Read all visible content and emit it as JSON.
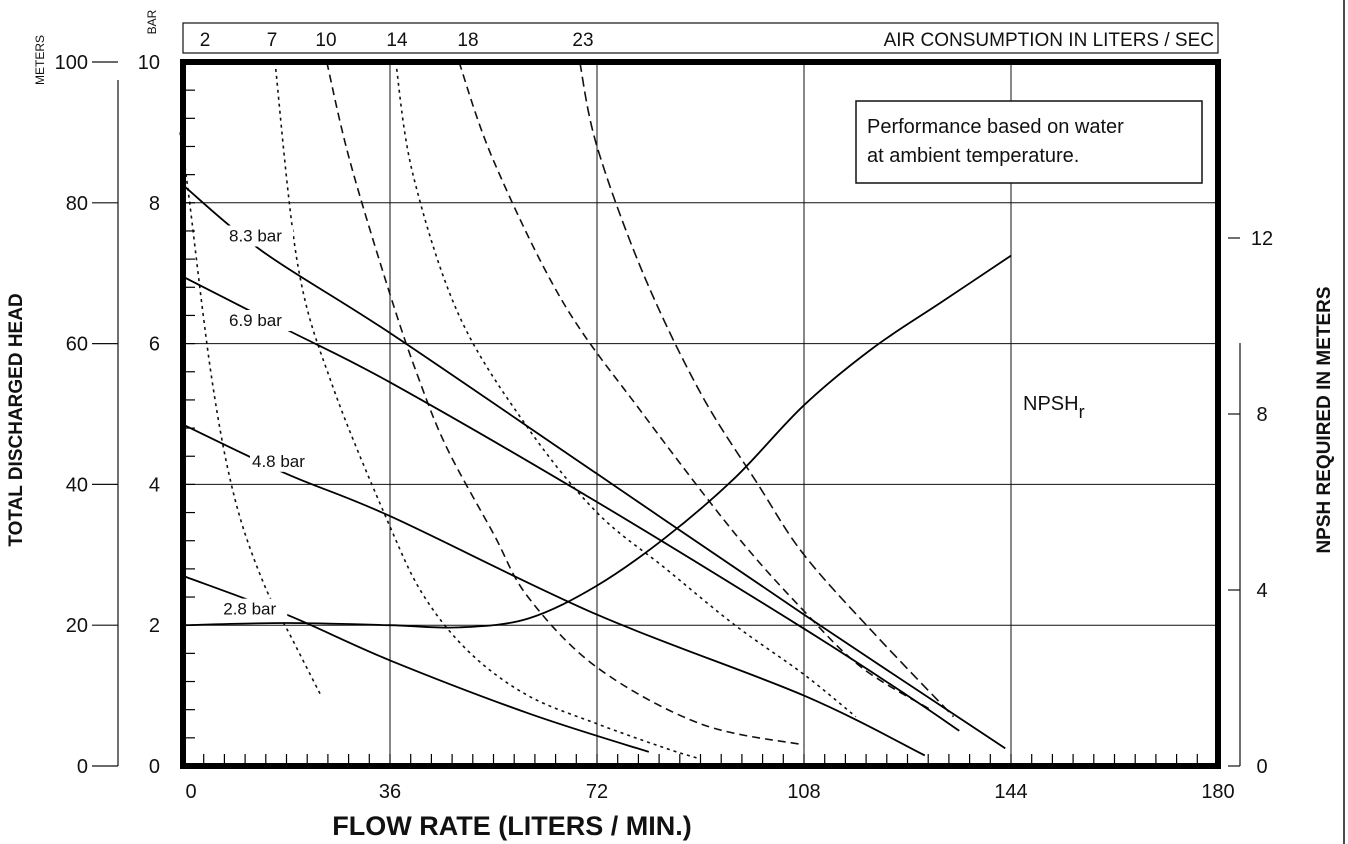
{
  "chart_data": {
    "type": "line",
    "x_axis": {
      "label": "FLOW RATE (LITERS / MIN.)",
      "range": [
        0,
        180
      ],
      "ticks": [
        "0",
        "36",
        "72",
        "108",
        "144",
        "180"
      ]
    },
    "y_axis_left_meters": {
      "unit_label": "METERS",
      "title": "TOTAL DISCHARGED HEAD",
      "range": [
        0,
        100
      ],
      "ticks": [
        "0",
        "20",
        "40",
        "60",
        "80",
        "100"
      ]
    },
    "y_axis_left_bar": {
      "unit_label": "BAR",
      "range": [
        0,
        10
      ],
      "ticks": [
        "0",
        "2",
        "4",
        "6",
        "8",
        "10"
      ]
    },
    "y_axis_right": {
      "title": "NPSH REQUIRED IN METERS",
      "range": [
        0,
        16
      ],
      "ticks": [
        "0",
        "4",
        "8",
        "12"
      ]
    },
    "air_consumption_header": {
      "title": "AIR CONSUMPTION IN LITERS / SEC",
      "labels": [
        "2",
        "7",
        "10",
        "14",
        "18",
        "23"
      ]
    },
    "note": {
      "line1": "Performance based on water",
      "line2": "at ambient temperature."
    },
    "npsh_label": {
      "main": "NPSH",
      "subscript": "r"
    },
    "pressure_curves": [
      {
        "name": "8.3 bar",
        "points": [
          [
            0,
            82.5
          ],
          [
            14,
            73
          ],
          [
            36,
            61.5
          ],
          [
            72,
            41.5
          ],
          [
            108,
            21.5
          ],
          [
            143,
            2.5
          ]
        ]
      },
      {
        "name": "6.9 bar",
        "points": [
          [
            0,
            69.5
          ],
          [
            18,
            62
          ],
          [
            36,
            54.5
          ],
          [
            72,
            37.5
          ],
          [
            108,
            19.5
          ],
          [
            126,
            10
          ],
          [
            135,
            5
          ]
        ]
      },
      {
        "name": "4.8 bar",
        "points": [
          [
            0,
            48.5
          ],
          [
            18,
            41.5
          ],
          [
            36,
            35.5
          ],
          [
            72,
            21.5
          ],
          [
            108,
            10
          ],
          [
            129,
            1.5
          ]
        ]
      },
      {
        "name": "2.8 bar",
        "points": [
          [
            0,
            27
          ],
          [
            18,
            21.5
          ],
          [
            36,
            15
          ],
          [
            60,
            7.5
          ],
          [
            81,
            2
          ]
        ]
      }
    ],
    "air_curves": [
      {
        "name": "2",
        "points": [
          [
            -0.5,
            90
          ],
          [
            1,
            81
          ],
          [
            5,
            55
          ],
          [
            9,
            38
          ],
          [
            14,
            26
          ],
          [
            19,
            18
          ],
          [
            24,
            10
          ]
        ]
      },
      {
        "name": "7",
        "points": [
          [
            16,
            100
          ],
          [
            20,
            71
          ],
          [
            26,
            54
          ],
          [
            36,
            34
          ],
          [
            42,
            24
          ],
          [
            50,
            16
          ],
          [
            60,
            10
          ],
          [
            72,
            6
          ],
          [
            84,
            2.5
          ],
          [
            90,
            1
          ]
        ]
      },
      {
        "name": "10",
        "points": [
          [
            25,
            100
          ],
          [
            29,
            86
          ],
          [
            36,
            67
          ],
          [
            41,
            55
          ],
          [
            46,
            45
          ],
          [
            54,
            33
          ],
          [
            60,
            24
          ],
          [
            72,
            14
          ],
          [
            90,
            6
          ],
          [
            108,
            3
          ]
        ]
      },
      {
        "name": "14",
        "points": [
          [
            37,
            100
          ],
          [
            40,
            84
          ],
          [
            48,
            64
          ],
          [
            60,
            48
          ],
          [
            72,
            36
          ],
          [
            84,
            28
          ],
          [
            96,
            20
          ],
          [
            108,
            13
          ],
          [
            117,
            7
          ]
        ]
      },
      {
        "name": "18",
        "points": [
          [
            48,
            100
          ],
          [
            54,
            86
          ],
          [
            66,
            66
          ],
          [
            80,
            50
          ],
          [
            96,
            33
          ],
          [
            108,
            22
          ],
          [
            118,
            14
          ],
          [
            130,
            8
          ]
        ]
      },
      {
        "name": "23",
        "points": [
          [
            69,
            100
          ],
          [
            72,
            88
          ],
          [
            80,
            70
          ],
          [
            90,
            53
          ],
          [
            100,
            40
          ],
          [
            108,
            30
          ],
          [
            120,
            19
          ],
          [
            134,
            7
          ]
        ]
      }
    ],
    "npsh_curve": {
      "name": "NPSHr",
      "points": [
        [
          0,
          3.2
        ],
        [
          18,
          3.25
        ],
        [
          36,
          3.2
        ],
        [
          48,
          3.15
        ],
        [
          60,
          3.35
        ],
        [
          72,
          4.1
        ],
        [
          84,
          5.2
        ],
        [
          96,
          6.55
        ],
        [
          108,
          8.2
        ],
        [
          120,
          9.5
        ],
        [
          132,
          10.55
        ],
        [
          144,
          11.6
        ]
      ]
    },
    "grid": true
  }
}
